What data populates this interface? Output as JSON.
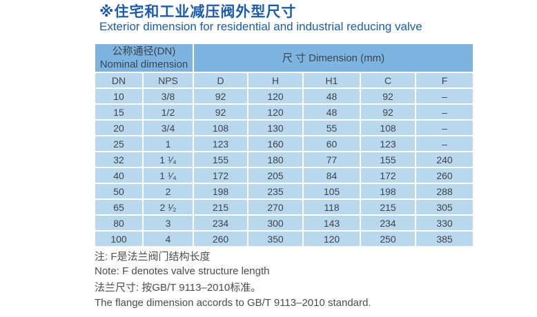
{
  "colors": {
    "title_blue": "#1a5cad",
    "group_header_blue": "#7eb5e0",
    "row_blue": "#b9d8ed",
    "cell_text": "#3f4348",
    "note_text": "#4c4c4c"
  },
  "header": {
    "title_zh": "※住宅和工业减压阀外型尺寸",
    "title_en": "Exterior dimension for residential and industrial reducing valve"
  },
  "table": {
    "group_headers": {
      "nominal_zh": "公称通径(DN)",
      "nominal_en": "Nominal dimension",
      "dimension": "尺 寸 Dimension  (mm)"
    },
    "columns": [
      "DN",
      "NPS",
      "D",
      "H",
      "H1",
      "C",
      "F"
    ],
    "rows": [
      [
        "10",
        "3/8",
        "92",
        "120",
        "48",
        "92",
        "–"
      ],
      [
        "15",
        "1/2",
        "92",
        "120",
        "48",
        "92",
        "–"
      ],
      [
        "20",
        "3/4",
        "108",
        "130",
        "55",
        "108",
        "–"
      ],
      [
        "25",
        "1",
        "123",
        "160",
        "60",
        "123",
        "–"
      ],
      [
        "32",
        "1 ¹⁄₄",
        "155",
        "180",
        "77",
        "155",
        "240"
      ],
      [
        "40",
        "1 ¹⁄₄",
        "172",
        "205",
        "84",
        "172",
        "260"
      ],
      [
        "50",
        "2",
        "198",
        "235",
        "105",
        "198",
        "288"
      ],
      [
        "65",
        "2 ¹⁄₂",
        "215",
        "270",
        "118",
        "215",
        "305"
      ],
      [
        "80",
        "3",
        "234",
        "300",
        "143",
        "234",
        "330"
      ],
      [
        "100",
        "4",
        "260",
        "350",
        "120",
        "250",
        "385"
      ]
    ]
  },
  "notes": {
    "note_zh": "注: F是法兰阀门结构长度",
    "note_en": "Note: F denotes valve structure length",
    "flange_zh": "法兰尺寸: 按GB/T 9113–2010标准。",
    "flange_en": "The flange dimension accords to GB/T 9113–2010 standard."
  }
}
